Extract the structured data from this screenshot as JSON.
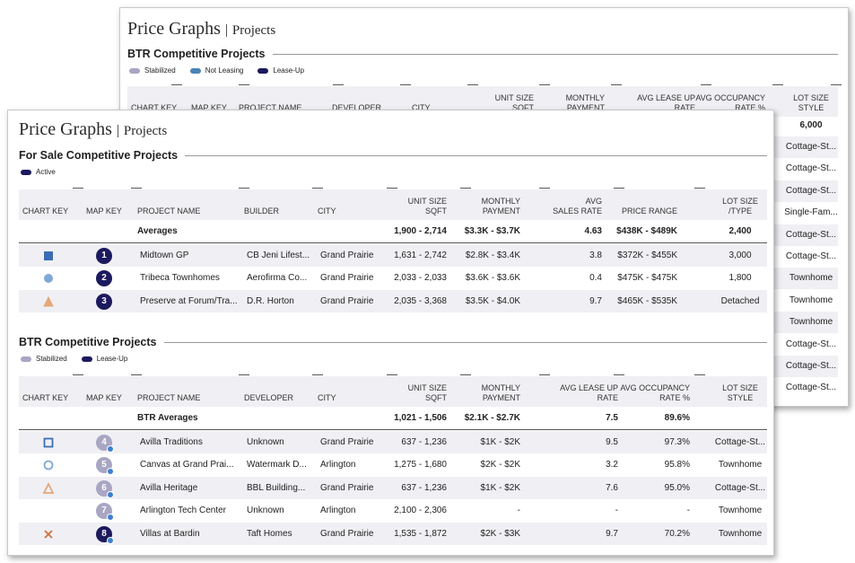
{
  "back_card": {
    "title": "Price Graphs",
    "subtitle": "Projects",
    "section": {
      "title": "BTR Competitive Projects",
      "legend": [
        {
          "name": "Stabilized",
          "color": "#a9a6c4"
        },
        {
          "name": "Not Leasing",
          "color": "#4a83b6"
        },
        {
          "name": "Lease-Up",
          "color": "#1c1a5e"
        }
      ],
      "columns": [
        [
          "CHART KEY"
        ],
        [
          "MAP KEY"
        ],
        [
          "PROJECT NAME"
        ],
        [
          "DEVELOPER"
        ],
        [
          "CITY"
        ],
        [
          "UNIT SIZE",
          "SQFT"
        ],
        [
          "MONTHLY",
          "PAYMENT"
        ],
        [
          "AVG LEASE UP",
          "RATE"
        ],
        [
          "AVG OCCUPANCY",
          "RATE %"
        ],
        [
          "LOT SIZE",
          "STYLE"
        ]
      ],
      "averages_lot_size": "6,000",
      "lot_size_style_values": [
        "Cottage-St...",
        "Cottage-St...",
        "Cottage-St...",
        "Single-Fam...",
        "Cottage-St...",
        "Cottage-St...",
        "Townhome",
        "Townhome",
        "Townhome",
        "Cottage-St...",
        "Cottage-St...",
        "Cottage-St..."
      ]
    }
  },
  "front_card": {
    "title": "Price Graphs",
    "subtitle": "Projects",
    "sections": [
      {
        "title": "For Sale Competitive Projects",
        "legend": [
          {
            "name": "Active",
            "color": "#1c1a5e"
          }
        ],
        "map_key_dot": false,
        "columns": [
          [
            "CHART KEY"
          ],
          [
            "MAP KEY"
          ],
          [
            "PROJECT NAME"
          ],
          [
            "BUILDER"
          ],
          [
            "CITY"
          ],
          [
            "UNIT SIZE",
            "SQFT"
          ],
          [
            "MONTHLY",
            "PAYMENT"
          ],
          [
            "AVG",
            "SALES RATE"
          ],
          [
            "PRICE RANGE"
          ],
          [
            "LOT SIZE",
            "/TYPE"
          ]
        ],
        "averages": {
          "label": "Averages",
          "cells": [
            "1,900 - 2,714",
            "$3.3K - $3.7K",
            "4.63",
            "$438K - $489K",
            "2,400"
          ]
        },
        "rows": [
          {
            "chart_key": "square",
            "chart_key_color": "#3b6db3",
            "map_key": "1",
            "map_key_color": "#1c1a5e",
            "cells": [
              "Midtown GP",
              "CB Jeni Lifest...",
              "Grand Prairie",
              "1,631 - 2,742",
              "$2.8K - $3.4K",
              "3.8",
              "$372K - $455K",
              "3,000"
            ]
          },
          {
            "chart_key": "circle",
            "chart_key_color": "#7fa8d8",
            "map_key": "2",
            "map_key_color": "#1c1a5e",
            "cells": [
              "Tribeca Townhomes",
              "Aerofirma Co...",
              "Grand Prairie",
              "2,033 - 2,033",
              "$3.6K - $3.6K",
              "0.4",
              "$475K - $475K",
              "1,800"
            ]
          },
          {
            "chart_key": "triangle",
            "chart_key_color": "#e3a77a",
            "map_key": "3",
            "map_key_color": "#1c1a5e",
            "cells": [
              "Preserve at Forum/Tra...",
              "D.R. Horton",
              "Grand Prairie",
              "2,035 - 3,368",
              "$3.5K - $4.0K",
              "9.7",
              "$465K - $535K",
              "Detached"
            ]
          }
        ]
      },
      {
        "title": "BTR Competitive Projects",
        "legend": [
          {
            "name": "Stabilized",
            "color": "#a9a6c4"
          },
          {
            "name": "Lease-Up",
            "color": "#1c1a5e"
          }
        ],
        "map_key_dot": true,
        "columns": [
          [
            "CHART KEY"
          ],
          [
            "MAP KEY"
          ],
          [
            "PROJECT NAME"
          ],
          [
            "DEVELOPER"
          ],
          [
            "CITY"
          ],
          [
            "UNIT SIZE",
            "SQFT"
          ],
          [
            "MONTHLY",
            "PAYMENT"
          ],
          [
            "AVG LEASE UP",
            "RATE"
          ],
          [
            "AVG OCCUPANCY",
            "RATE %"
          ],
          [
            "LOT SIZE",
            "STYLE"
          ]
        ],
        "averages": {
          "label": "BTR Averages",
          "cells": [
            "1,021 - 1,506",
            "$2.1K - $2.7K",
            "7.5",
            "89.6%"
          ]
        },
        "rows": [
          {
            "chart_key": "square-outline",
            "chart_key_color": "#3b6db3",
            "map_key": "4",
            "map_key_color": "#a9a6c4",
            "cells": [
              "Avilla Traditions",
              "Unknown",
              "Grand Prairie",
              "637 - 1,236",
              "$1K - $2K",
              "9.5",
              "97.3%",
              "Cottage-St..."
            ]
          },
          {
            "chart_key": "circle-outline",
            "chart_key_color": "#7fa8d8",
            "map_key": "5",
            "map_key_color": "#a9a6c4",
            "cells": [
              "Canvas at Grand Prai...",
              "Watermark D...",
              "Arlington",
              "1,275 - 1,680",
              "$2K - $2K",
              "3.2",
              "95.8%",
              "Townhome"
            ]
          },
          {
            "chart_key": "triangle-outline",
            "chart_key_color": "#e3a77a",
            "map_key": "6",
            "map_key_color": "#a9a6c4",
            "cells": [
              "Avilla Heritage",
              "BBL Building...",
              "Grand Prairie",
              "637 - 1,236",
              "$1K - $2K",
              "7.6",
              "95.0%",
              "Cottage-St..."
            ]
          },
          {
            "map_key": "7",
            "map_key_color": "#a9a6c4",
            "cells": [
              "Arlington Tech Center",
              "Unknown",
              "Arlington",
              "2,100 - 2,306",
              "-",
              "-",
              "-",
              "Townhome"
            ]
          },
          {
            "chart_key": "cross",
            "chart_key_color": "#d0703a",
            "map_key": "8",
            "map_key_color": "#1c1a5e",
            "cells": [
              "Villas at Bardin",
              "Taft Homes",
              "Grand Prairie",
              "1,535 - 1,872",
              "$2K - $3K",
              "9.7",
              "70.2%",
              "Townhome"
            ]
          }
        ]
      }
    ]
  }
}
